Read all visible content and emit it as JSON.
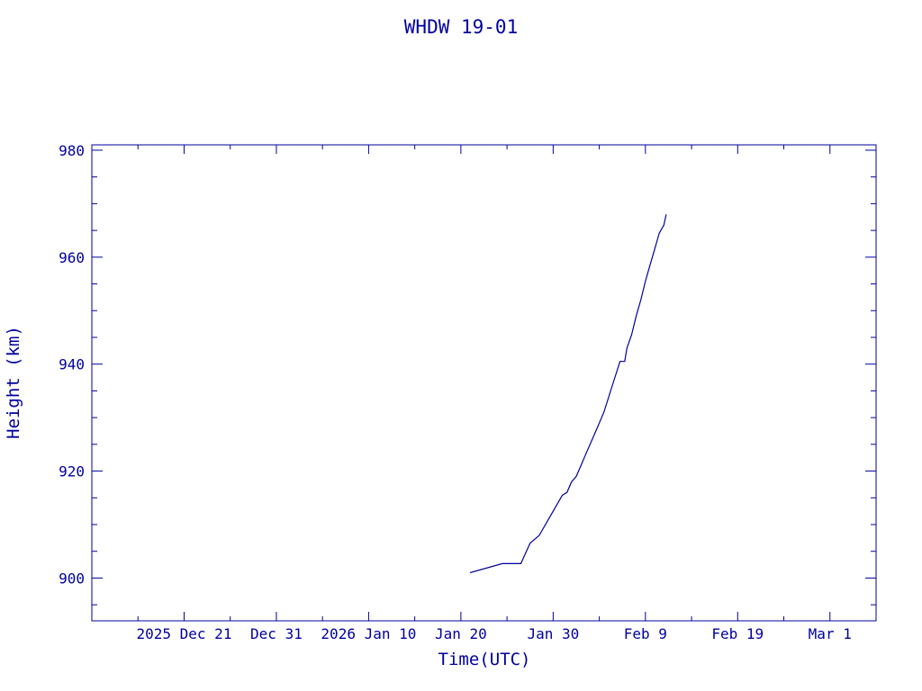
{
  "chart_data": {
    "type": "line",
    "title": "WHDW 19-01",
    "xlabel": "Time(UTC)",
    "ylabel": "Height (km)",
    "x_unit": "date",
    "xlim": [
      "2025-12-11",
      "2026-03-06"
    ],
    "ylim": [
      892,
      981
    ],
    "x_ticks": [
      {
        "date": "2025-12-21",
        "label": "2025 Dec 21"
      },
      {
        "date": "2025-12-31",
        "label": "Dec 31"
      },
      {
        "date": "2026-01-10",
        "label": "2026 Jan 10"
      },
      {
        "date": "2026-01-20",
        "label": "Jan 20"
      },
      {
        "date": "2026-01-30",
        "label": "Jan 30"
      },
      {
        "date": "2026-02-09",
        "label": "Feb  9"
      },
      {
        "date": "2026-02-19",
        "label": "Feb 19"
      },
      {
        "date": "2026-03-01",
        "label": "Mar  1"
      }
    ],
    "x_minor_dates": [
      "2025-12-16",
      "2025-12-26",
      "2026-01-05",
      "2026-01-15",
      "2026-01-25",
      "2026-02-04",
      "2026-02-14",
      "2026-02-24"
    ],
    "y_ticks": [
      900,
      920,
      940,
      960,
      980
    ],
    "y_minor_step": 5,
    "grid": false,
    "color": "#0000a0",
    "series": [
      {
        "points": [
          [
            "2026-01-21T00:00",
            901.0
          ],
          [
            "2026-01-24T12:00",
            902.7
          ],
          [
            "2026-01-26T12:00",
            902.7
          ],
          [
            "2026-01-27T12:00",
            906.5
          ],
          [
            "2026-01-28T12:00",
            908.0
          ],
          [
            "2026-01-29T12:00",
            911.0
          ],
          [
            "2026-01-30T12:00",
            914.0
          ],
          [
            "2026-01-31T00:00",
            915.5
          ],
          [
            "2026-01-31T12:00",
            916.0
          ],
          [
            "2026-02-01T00:00",
            918.0
          ],
          [
            "2026-02-01T12:00",
            919.0
          ],
          [
            "2026-02-02T12:00",
            923.0
          ],
          [
            "2026-02-03T12:00",
            927.0
          ],
          [
            "2026-02-04T12:00",
            931.0
          ],
          [
            "2026-02-05T12:00",
            936.5
          ],
          [
            "2026-02-06T06:00",
            940.5
          ],
          [
            "2026-02-06T18:00",
            940.5
          ],
          [
            "2026-02-07T00:00",
            943.0
          ],
          [
            "2026-02-07T12:00",
            945.5
          ],
          [
            "2026-02-08T00:00",
            949.0
          ],
          [
            "2026-02-08T12:00",
            952.0
          ],
          [
            "2026-02-09T00:00",
            955.5
          ],
          [
            "2026-02-09T12:00",
            958.5
          ],
          [
            "2026-02-10T00:00",
            961.5
          ],
          [
            "2026-02-10T12:00",
            964.5
          ],
          [
            "2026-02-11T00:00",
            966.0
          ],
          [
            "2026-02-11T06:00",
            968.0
          ]
        ]
      }
    ]
  }
}
